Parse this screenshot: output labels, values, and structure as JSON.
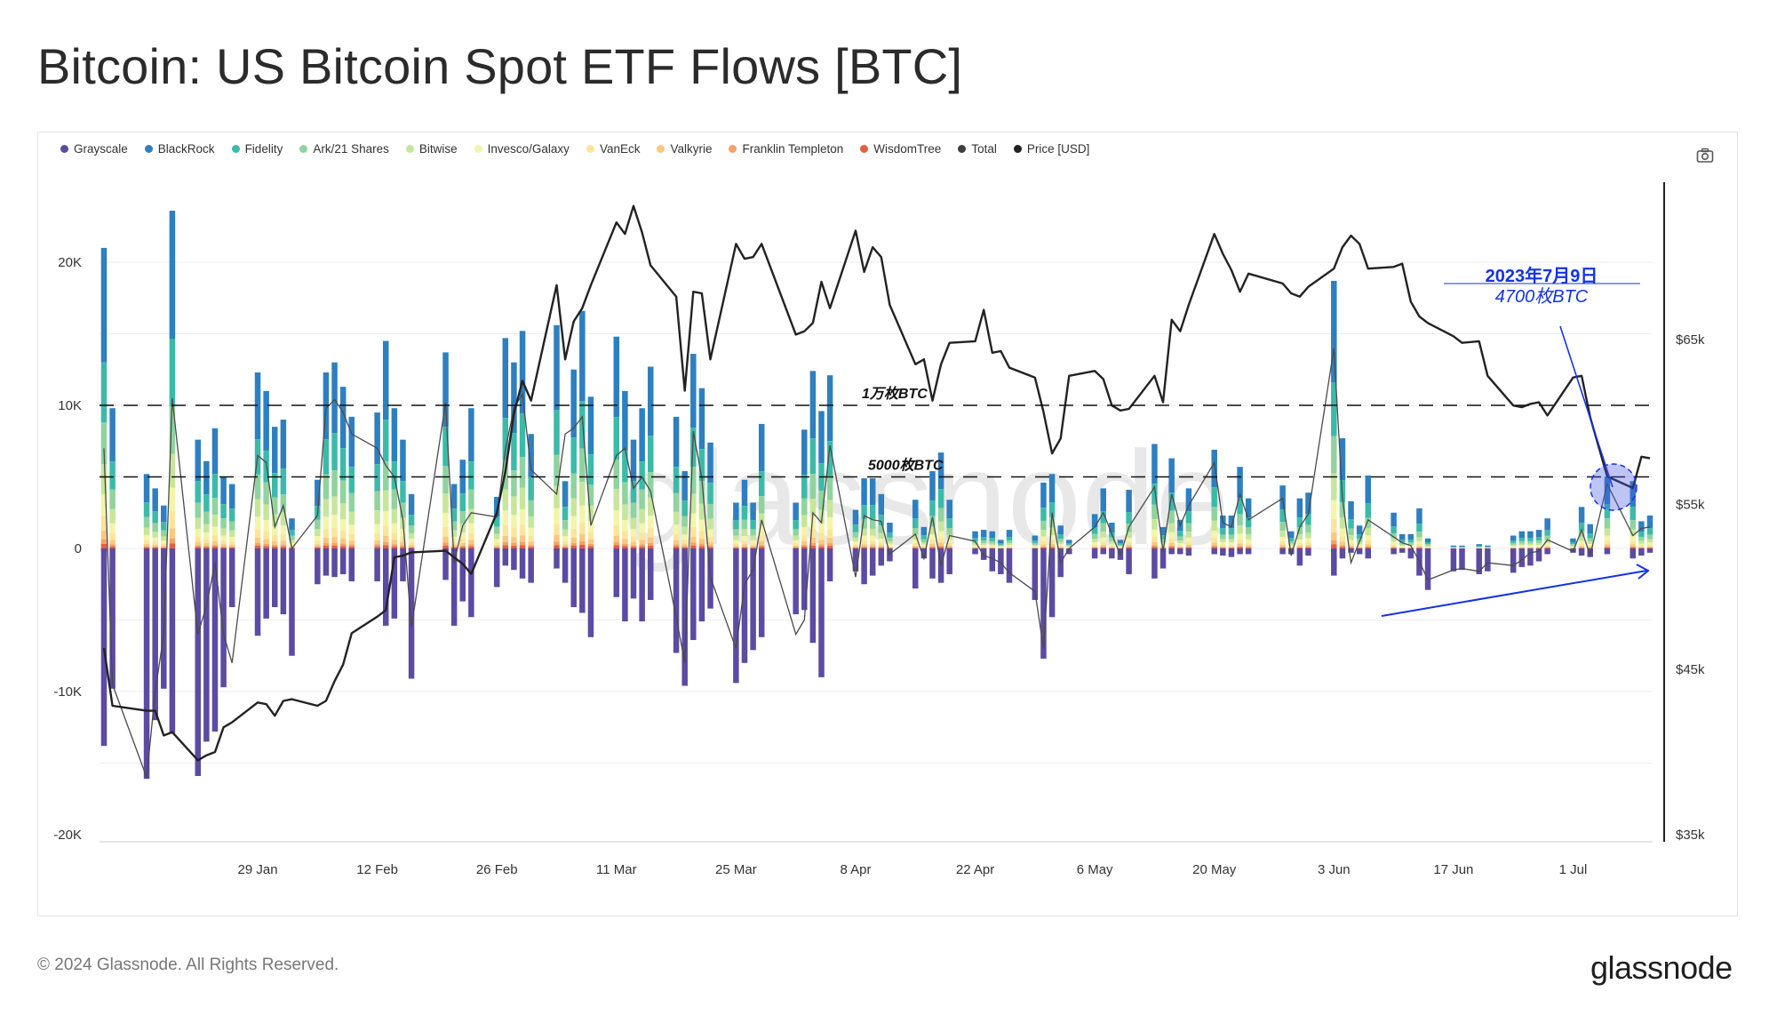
{
  "title": "Bitcoin: US Bitcoin Spot ETF Flows [BTC]",
  "footer": "© 2024 Glassnode. All Rights Reserved.",
  "brand": "glassnode",
  "watermark": "glassnode",
  "legend": [
    {
      "name": "Grayscale",
      "color": "#5b4ba3"
    },
    {
      "name": "BlackRock",
      "color": "#2e7fc0"
    },
    {
      "name": "Fidelity",
      "color": "#3cbaa9"
    },
    {
      "name": "Ark/21 Shares",
      "color": "#8fd39e"
    },
    {
      "name": "Bitwise",
      "color": "#c6e69a"
    },
    {
      "name": "Invesco/Galaxy",
      "color": "#f3f5a8"
    },
    {
      "name": "VanEck",
      "color": "#fbe59b"
    },
    {
      "name": "Valkyrie",
      "color": "#f9c97e"
    },
    {
      "name": "Franklin Templeton",
      "color": "#f4a267"
    },
    {
      "name": "WisdomTree",
      "color": "#e55f3e"
    },
    {
      "name": "Total",
      "color": "#3d3d3d"
    },
    {
      "name": "Price [USD]",
      "color": "#222222"
    }
  ],
  "chart_data": {
    "type": "bar",
    "title": "Bitcoin: US Bitcoin Spot ETF Flows [BTC]",
    "x_ticks": [
      "29 Jan",
      "12 Feb",
      "26 Feb",
      "11 Mar",
      "25 Mar",
      "8 Apr",
      "22 Apr",
      "6 May",
      "20 May",
      "3 Jun",
      "17 Jun",
      "1 Jul"
    ],
    "y_ticks": [
      "20K",
      "10K",
      "0",
      "-10K",
      "-20K"
    ],
    "y2_ticks": [
      "$65k",
      "$55k",
      "$45k",
      "$35k"
    ],
    "ylim": [
      -20000,
      22000
    ],
    "y2lim": [
      35000,
      70000
    ],
    "dates": [
      "2024-01-11",
      "2024-01-12",
      "2024-01-16",
      "2024-01-17",
      "2024-01-18",
      "2024-01-19",
      "2024-01-22",
      "2024-01-23",
      "2024-01-24",
      "2024-01-25",
      "2024-01-26",
      "2024-01-29",
      "2024-01-30",
      "2024-01-31",
      "2024-02-01",
      "2024-02-02",
      "2024-02-05",
      "2024-02-06",
      "2024-02-07",
      "2024-02-08",
      "2024-02-09",
      "2024-02-12",
      "2024-02-13",
      "2024-02-14",
      "2024-02-15",
      "2024-02-16",
      "2024-02-20",
      "2024-02-21",
      "2024-02-22",
      "2024-02-23",
      "2024-02-26",
      "2024-02-27",
      "2024-02-28",
      "2024-02-29",
      "2024-03-01",
      "2024-03-04",
      "2024-03-05",
      "2024-03-06",
      "2024-03-07",
      "2024-03-08",
      "2024-03-11",
      "2024-03-12",
      "2024-03-13",
      "2024-03-14",
      "2024-03-15",
      "2024-03-18",
      "2024-03-19",
      "2024-03-20",
      "2024-03-21",
      "2024-03-22",
      "2024-03-25",
      "2024-03-26",
      "2024-03-27",
      "2024-03-28",
      "2024-04-01",
      "2024-04-02",
      "2024-04-03",
      "2024-04-04",
      "2024-04-05",
      "2024-04-08",
      "2024-04-09",
      "2024-04-10",
      "2024-04-11",
      "2024-04-12",
      "2024-04-15",
      "2024-04-16",
      "2024-04-17",
      "2024-04-18",
      "2024-04-19",
      "2024-04-22",
      "2024-04-23",
      "2024-04-24",
      "2024-04-25",
      "2024-04-26",
      "2024-04-29",
      "2024-04-30",
      "2024-05-01",
      "2024-05-02",
      "2024-05-03",
      "2024-05-06",
      "2024-05-07",
      "2024-05-08",
      "2024-05-09",
      "2024-05-10",
      "2024-05-13",
      "2024-05-14",
      "2024-05-15",
      "2024-05-16",
      "2024-05-17",
      "2024-05-20",
      "2024-05-21",
      "2024-05-22",
      "2024-05-23",
      "2024-05-24",
      "2024-05-28",
      "2024-05-29",
      "2024-05-30",
      "2024-05-31",
      "2024-06-03",
      "2024-06-04",
      "2024-06-05",
      "2024-06-06",
      "2024-06-07",
      "2024-06-10",
      "2024-06-11",
      "2024-06-12",
      "2024-06-13",
      "2024-06-14",
      "2024-06-17",
      "2024-06-18",
      "2024-06-20",
      "2024-06-21",
      "2024-06-24",
      "2024-06-25",
      "2024-06-26",
      "2024-06-27",
      "2024-06-28",
      "2024-07-01",
      "2024-07-02",
      "2024-07-03",
      "2024-07-05",
      "2024-07-08",
      "2024-07-09",
      "2024-07-10"
    ],
    "positive_total": [
      21000,
      9800,
      5200,
      4200,
      3000,
      23600,
      7600,
      6100,
      8400,
      5000,
      4500,
      12300,
      11000,
      8500,
      9000,
      2100,
      4800,
      12300,
      13000,
      11300,
      9200,
      9500,
      14500,
      9800,
      7600,
      3800,
      13700,
      4500,
      6200,
      9800,
      3600,
      14700,
      13000,
      15200,
      8000,
      15600,
      4700,
      12500,
      16600,
      10600,
      14800,
      11000,
      7600,
      9800,
      12700,
      9200,
      5400,
      13600,
      11200,
      7400,
      3200,
      4800,
      3200,
      8700,
      3200,
      8300,
      12400,
      9600,
      12100,
      2700,
      4900,
      4900,
      3800,
      1800,
      3400,
      1500,
      5400,
      6700,
      3400,
      1200,
      1300,
      1200,
      600,
      1300,
      900,
      4600,
      5200,
      1600,
      600,
      2400,
      4200,
      1800,
      600,
      4100,
      7300,
      1500,
      6300,
      2000,
      4200,
      6900,
      2300,
      2300,
      5700,
      3500,
      4400,
      1200,
      3500,
      3900,
      18700,
      7700,
      3300,
      1600,
      5100,
      2500,
      1000,
      1000,
      2800,
      700,
      200,
      200,
      300,
      200,
      900,
      1200,
      1200,
      1300,
      2100,
      700,
      2900,
      1700,
      5000,
      4700,
      1900,
      2300
    ],
    "negative_total": [
      -13800,
      -9800,
      -16100,
      -12000,
      -9800,
      -12900,
      -15900,
      -13500,
      -12800,
      -9700,
      -4100,
      -6100,
      -4900,
      -4100,
      -4600,
      -7500,
      -2500,
      -1900,
      -2000,
      -1800,
      -2300,
      -2300,
      -5400,
      -4900,
      -2300,
      -9100,
      -2200,
      -5400,
      -3700,
      -4800,
      -2700,
      -1200,
      -1500,
      -2100,
      -2400,
      -1400,
      -2400,
      -4100,
      -4500,
      -6200,
      -3400,
      -5100,
      -3500,
      -5100,
      -3600,
      -7300,
      -9600,
      -6400,
      -5100,
      -4200,
      -9400,
      -8000,
      -7100,
      -6200,
      -4600,
      -4300,
      -6600,
      -9000,
      -2300,
      -1600,
      -2500,
      -1900,
      -1200,
      -900,
      -2800,
      -700,
      -2100,
      -2400,
      -1800,
      -400,
      -800,
      -1600,
      -1800,
      -2400,
      -3600,
      -7700,
      -4800,
      -2000,
      -400,
      -700,
      -400,
      -700,
      -800,
      -1800,
      -2100,
      -1400,
      -400,
      -400,
      -500,
      -400,
      -500,
      -600,
      -400,
      -400,
      -400,
      -400,
      -1200,
      -500,
      -1900,
      -700,
      -300,
      -400,
      -700,
      -400,
      -300,
      -700,
      -1900,
      -2900,
      -1600,
      -1500,
      -1800,
      -1600,
      -1700,
      -1300,
      -1200,
      -900,
      -400,
      -300,
      -500,
      -600,
      -400,
      -700,
      -500,
      -300
    ],
    "total_flow_line": [
      7000,
      -9500,
      -16000,
      -10000,
      -6000,
      10500,
      -6000,
      -4000,
      -1000,
      -6000,
      -8000,
      6500,
      6000,
      1500,
      3000,
      0,
      2300,
      9800,
      10400,
      9500,
      8000,
      7000,
      5800,
      5000,
      2000,
      -5500,
      10200,
      -1000,
      1600,
      2500,
      2200,
      6900,
      9800,
      10800,
      5500,
      3800,
      8000,
      8400,
      9200,
      1600,
      6500,
      7000,
      4200,
      5000,
      4000,
      -4800,
      -8000,
      8200,
      4900,
      -2000,
      -7000,
      -2500,
      -1500,
      2000,
      -6000,
      -5000,
      2500,
      1800,
      7200,
      -2000,
      2300,
      2000,
      1900,
      -400,
      1000,
      -700,
      2200,
      -1200,
      900,
      500,
      -500,
      -700,
      -1000,
      -1700,
      -3000,
      -7000,
      2500,
      -1000,
      0,
      1500,
      2500,
      1000,
      -500,
      1500,
      4300,
      -200,
      3800,
      1600,
      3000,
      6000,
      1800,
      1500,
      3800,
      2000,
      3500,
      -500,
      1500,
      2400,
      14000,
      3500,
      -1000,
      500,
      2000,
      800,
      400,
      200,
      -900,
      -2200,
      -1500,
      -1400,
      -1600,
      -1000,
      -1200,
      -800,
      -300,
      -200,
      600,
      -200,
      1300,
      -500,
      4500,
      900,
      1400,
      1500
    ],
    "price_line": [
      46300,
      42800,
      42500,
      42500,
      41000,
      41200,
      39500,
      39800,
      40000,
      41500,
      41800,
      43000,
      42900,
      42200,
      43100,
      43200,
      42800,
      43100,
      44300,
      45300,
      47200,
      48200,
      48600,
      51800,
      51900,
      52100,
      52200,
      51800,
      51400,
      50800,
      54500,
      57000,
      60500,
      62500,
      61300,
      68300,
      63800,
      66100,
      66900,
      68300,
      72100,
      71400,
      73100,
      71500,
      69500,
      67600,
      61900,
      67900,
      67800,
      63800,
      70800,
      69900,
      70000,
      70800,
      65300,
      65500,
      66000,
      68500,
      66900,
      71600,
      69100,
      70600,
      70000,
      67100,
      63500,
      63800,
      61300,
      63500,
      64800,
      64900,
      66800,
      64200,
      64300,
      63300,
      62700,
      60600,
      58100,
      59000,
      62800,
      63100,
      62600,
      61000,
      60700,
      60800,
      62800,
      61200,
      66200,
      65500,
      67100,
      71400,
      70200,
      69200,
      67900,
      69000,
      68400,
      67800,
      67600,
      68200,
      69300,
      70600,
      71300,
      70800,
      69300,
      69400,
      69600,
      67300,
      66400,
      66000,
      65200,
      64800,
      64900,
      62800,
      61000,
      60900,
      61100,
      61200,
      60400,
      62700,
      62800,
      60300,
      56700,
      56000,
      57900,
      57800
    ],
    "reference_lines": [
      {
        "value": 10000,
        "label": "1万枚BTC"
      },
      {
        "value": 5000,
        "label": "5000枚BTC"
      }
    ],
    "annotation": {
      "date_label": "2023年7月9日",
      "value_label": "4700枚BTC"
    },
    "legend_position": "top-left"
  }
}
